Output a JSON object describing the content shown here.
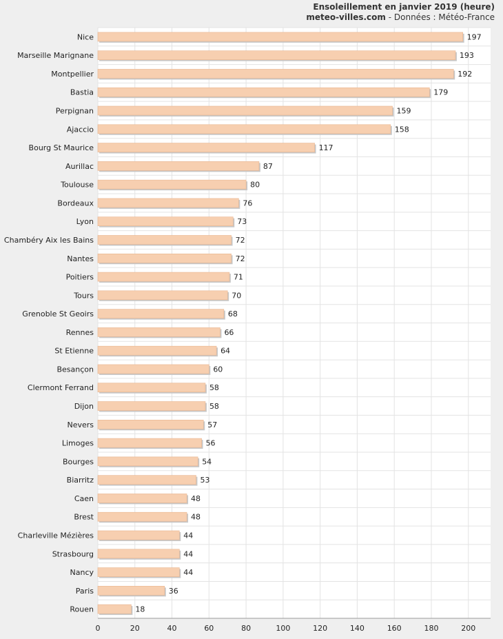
{
  "chart_data": {
    "type": "bar",
    "orientation": "horizontal",
    "title": "Ensoleillement en janvier 2019 (heure)",
    "source": {
      "site": "meteo-villes.com",
      "separator": " - ",
      "credit": "Données : Météo-France"
    },
    "categories": [
      "Nice",
      "Marseille Marignane",
      "Montpellier",
      "Bastia",
      "Perpignan",
      "Ajaccio",
      "Bourg St Maurice",
      "Aurillac",
      "Toulouse",
      "Bordeaux",
      "Lyon",
      "Chambéry Aix les Bains",
      "Nantes",
      "Poitiers",
      "Tours",
      "Grenoble St Geoirs",
      "Rennes",
      "St Etienne",
      "Besançon",
      "Clermont Ferrand",
      "Dijon",
      "Nevers",
      "Limoges",
      "Bourges",
      "Biarritz",
      "Caen",
      "Brest",
      "Charleville Mézières",
      "Strasbourg",
      "Nancy",
      "Paris",
      "Rouen"
    ],
    "values": [
      197,
      193,
      192,
      179,
      159,
      158,
      117,
      87,
      80,
      76,
      73,
      72,
      72,
      71,
      70,
      68,
      66,
      64,
      60,
      58,
      58,
      57,
      56,
      54,
      53,
      48,
      48,
      44,
      44,
      44,
      36,
      18
    ],
    "xlim": [
      0,
      212
    ],
    "xticks": [
      0,
      20,
      40,
      60,
      80,
      100,
      120,
      140,
      160,
      180,
      200
    ],
    "grid": true,
    "legend": "none",
    "colors": {
      "bar": "#f7cfb0",
      "bar_edge": "#e8b48e",
      "bar_shadow": "#c8c8c8",
      "plot_bg": "#ffffff",
      "grid": "#e3e3e3",
      "page_bg": "#efefef"
    }
  }
}
